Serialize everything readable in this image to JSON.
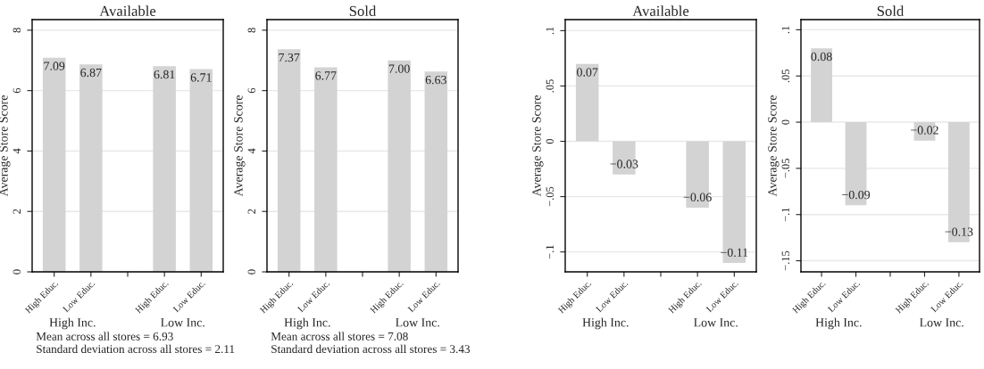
{
  "chart_data": [
    {
      "type": "bar",
      "title": "Available",
      "ylabel": "Average Store Score",
      "categories": [
        "High Educ.",
        "Low Educ.",
        null,
        "High Educ.",
        "Low Educ."
      ],
      "values": [
        7.09,
        6.87,
        null,
        6.81,
        6.71
      ],
      "value_labels": [
        "7.09",
        "6.87",
        null,
        "6.81",
        "6.71"
      ],
      "color": "#d3d3d3",
      "ylim": [
        0,
        8.35
      ],
      "yticks": [
        0,
        2,
        4,
        6,
        8
      ],
      "grid": "y",
      "legend": false,
      "annotations": [
        "High Inc.",
        "Low Inc.",
        "Mean across all stores = 6.93",
        "Standard deviation across all stores = 2.11"
      ]
    },
    {
      "type": "bar",
      "title": "Sold",
      "ylabel": "Average Store Score",
      "categories": [
        "High Educ.",
        "Low Educ.",
        null,
        "High Educ.",
        "Low Educ."
      ],
      "values": [
        7.37,
        6.77,
        null,
        7.0,
        6.63
      ],
      "value_labels": [
        "7.37",
        "6.77",
        null,
        "7.00",
        "6.63"
      ],
      "color": "#d3d3d3",
      "ylim": [
        0,
        8.35
      ],
      "yticks": [
        0,
        2,
        4,
        6,
        8
      ],
      "grid": "y",
      "legend": false,
      "annotations": [
        "High Inc.",
        "Low Inc.",
        "Mean across all stores = 7.08",
        "Standard deviation across all stores = 3.43"
      ]
    },
    {
      "type": "bar",
      "title": "Available",
      "ylabel": "Average Store Score",
      "categories": [
        "High Educ.",
        "Low Educ.",
        null,
        "High Educ.",
        "Low Educ."
      ],
      "values": [
        0.07,
        -0.03,
        null,
        -0.06,
        -0.11
      ],
      "value_labels": [
        "0.07",
        "−0.03",
        null,
        "−0.06",
        "−0.11"
      ],
      "color": "#d3d3d3",
      "ylim": [
        -0.118,
        0.11
      ],
      "yticks": [
        {
          "value": -0.1,
          "label": "−.1"
        },
        {
          "value": -0.05,
          "label": "−.05"
        },
        0,
        {
          "value": 0.05,
          "label": ".05"
        },
        {
          "value": 0.1,
          "label": ".1"
        }
      ],
      "grid": "y",
      "legend": false,
      "annotations": [
        "High Inc.",
        "Low Inc."
      ]
    },
    {
      "type": "bar",
      "title": "Sold",
      "ylabel": "Average Store Score",
      "categories": [
        "High Educ.",
        "Low Educ.",
        null,
        "High Educ.",
        "Low Educ."
      ],
      "values": [
        0.08,
        -0.09,
        null,
        -0.02,
        -0.13
      ],
      "value_labels": [
        "0.08",
        "−0.09",
        null,
        "−0.02",
        "−0.13"
      ],
      "color": "#d3d3d3",
      "ylim": [
        -0.162,
        0.111
      ],
      "yticks": [
        {
          "value": -0.15,
          "label": "−.15"
        },
        {
          "value": -0.1,
          "label": "−.1"
        },
        {
          "value": -0.05,
          "label": "−.05"
        },
        0,
        {
          "value": 0.05,
          "label": ".05"
        },
        {
          "value": 0.1,
          "label": ".1"
        }
      ],
      "grid": "y",
      "legend": false,
      "annotations": [
        "High Inc.",
        "Low Inc."
      ]
    }
  ]
}
